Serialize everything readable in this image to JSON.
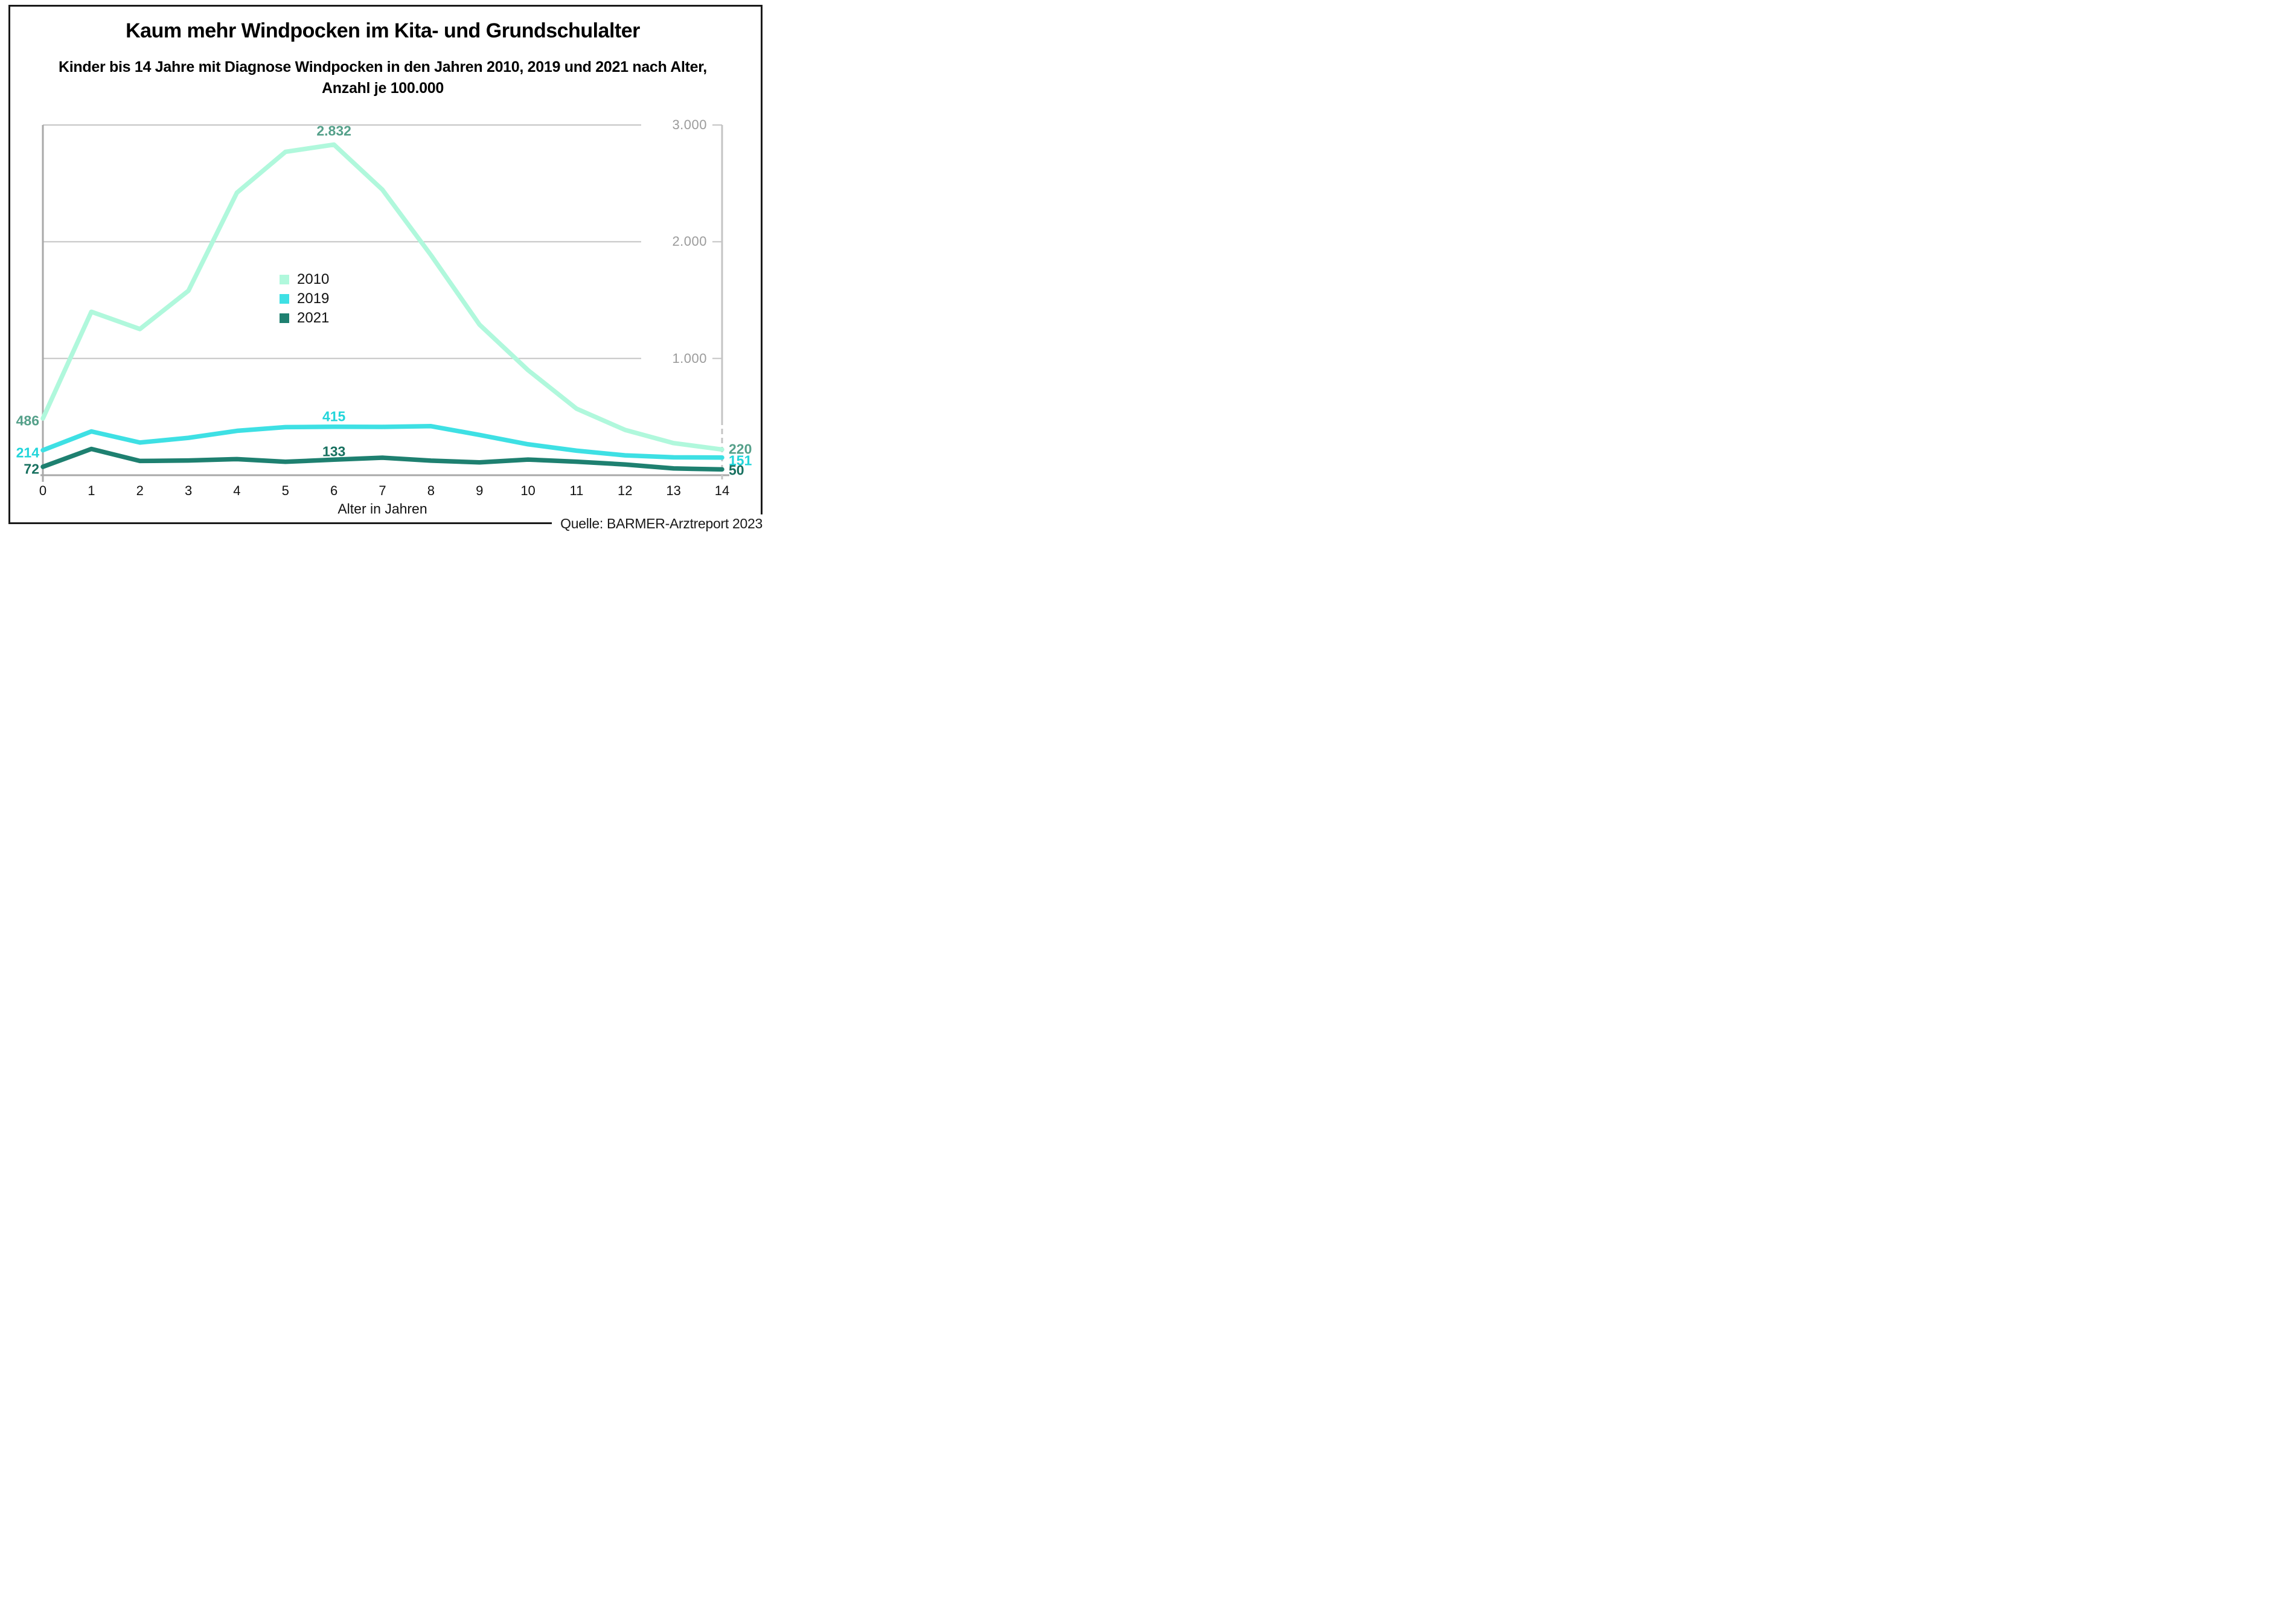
{
  "title": "Kaum mehr Windpocken im Kita- und Grundschulalter",
  "subtitle_line1": "Kinder bis 14 Jahre mit Diagnose Windpocken in den Jahren 2010, 2019 und 2021 nach Alter,",
  "subtitle_line2": "Anzahl je 100.000",
  "source": "Quelle: BARMER-Arztreport 2023",
  "colors": {
    "series_2010": "#b0f8dc",
    "series_2019": "#3ee0e4",
    "series_2021": "#1e8070",
    "label_2010": "#55a08a",
    "label_2019": "#22d5da",
    "label_2021": "#17705f",
    "gridline": "#c4c4c4",
    "axis_line": "#a8a8a8",
    "ytick_text": "#9b9b9b",
    "border": "#1a1a1a"
  },
  "chart_data": {
    "type": "line",
    "title": "Kaum mehr Windpocken im Kita- und Grundschulalter",
    "subtitle": "Kinder bis 14 Jahre mit Diagnose Windpocken in den Jahren 2010, 2019 und 2021 nach Alter, Anzahl je 100.000",
    "xlabel": "Alter in Jahren",
    "ylabel": "",
    "x": [
      0,
      1,
      2,
      3,
      4,
      5,
      6,
      7,
      8,
      9,
      10,
      11,
      12,
      13,
      14
    ],
    "x_tick_labels": [
      "0",
      "1",
      "2",
      "3",
      "4",
      "5",
      "6",
      "7",
      "8",
      "9",
      "10",
      "11",
      "12",
      "13",
      "14"
    ],
    "ylim": [
      0,
      3000
    ],
    "grid": true,
    "legend_position": "center-left of plot",
    "y_ticks": [
      {
        "value": 1000,
        "label": "1.000"
      },
      {
        "value": 2000,
        "label": "2.000"
      },
      {
        "value": 3000,
        "label": "3.000"
      }
    ],
    "series": [
      {
        "name": "2010",
        "color": "#b0f8dc",
        "label_color": "#55a08a",
        "values": [
          486,
          1400,
          1252,
          1580,
          2420,
          2770,
          2832,
          2445,
          1885,
          1290,
          900,
          570,
          388,
          275,
          220
        ]
      },
      {
        "name": "2019",
        "color": "#3ee0e4",
        "label_color": "#22d5da",
        "values": [
          214,
          375,
          280,
          320,
          380,
          412,
          415,
          414,
          420,
          345,
          265,
          210,
          170,
          153,
          151
        ]
      },
      {
        "name": "2021",
        "color": "#1e8070",
        "label_color": "#17705f",
        "values": [
          72,
          225,
          122,
          126,
          138,
          115,
          133,
          150,
          125,
          110,
          134,
          116,
          92,
          58,
          50
        ]
      }
    ],
    "annotations": [
      {
        "series": "2010",
        "age": 0,
        "text": "486",
        "anchor": "left",
        "dy": 4
      },
      {
        "series": "2019",
        "age": 0,
        "text": "214",
        "anchor": "left",
        "dy": 4
      },
      {
        "series": "2021",
        "age": 0,
        "text": "72",
        "anchor": "left",
        "dy": 4
      },
      {
        "series": "2010",
        "age": 6,
        "text": "2.832",
        "anchor": "above",
        "dy": -22
      },
      {
        "series": "2019",
        "age": 6,
        "text": "415",
        "anchor": "above",
        "dy": -17
      },
      {
        "series": "2021",
        "age": 6,
        "text": "133",
        "anchor": "above",
        "dy": -13
      },
      {
        "series": "2010",
        "age": 14,
        "text": "220",
        "anchor": "right",
        "dy": 0
      },
      {
        "series": "2019",
        "age": 14,
        "text": "151",
        "anchor": "right",
        "dy": 5
      },
      {
        "series": "2021",
        "age": 14,
        "text": "50",
        "anchor": "right",
        "dy": 2
      }
    ]
  },
  "legend": {
    "items": [
      {
        "label": "2010",
        "color": "#b0f8dc"
      },
      {
        "label": "2019",
        "color": "#3ee0e4"
      },
      {
        "label": "2021",
        "color": "#1e8070"
      }
    ]
  }
}
